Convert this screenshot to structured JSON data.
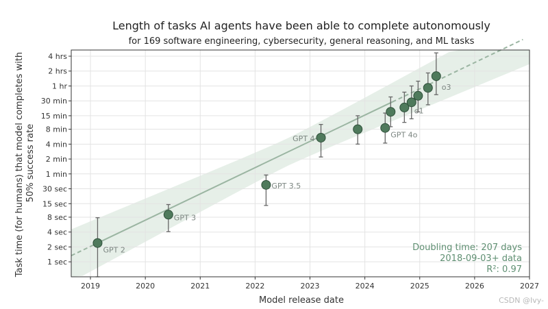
{
  "chart_data": {
    "type": "scatter",
    "title": "Length of tasks AI agents have been able to complete autonomously",
    "subtitle": "for 169 software engineering, cybersecurity, general reasoning, and ML tasks",
    "xlabel": "Model release date",
    "ylabel": "Task time (for humans) that model completes with 50% success rate",
    "x_range": [
      2018.65,
      2027.0
    ],
    "x_ticks": [
      "2019",
      "2020",
      "2021",
      "2022",
      "2023",
      "2024",
      "2025",
      "2026",
      "2027"
    ],
    "x_tick_values": [
      2019,
      2020,
      2021,
      2022,
      2023,
      2024,
      2025,
      2026,
      2027
    ],
    "y_scale": "log",
    "y_range_minutes": [
      0.0083,
      320
    ],
    "y_ticks": [
      "1 sec",
      "2 sec",
      "4 sec",
      "8 sec",
      "15 sec",
      "30 sec",
      "1 min",
      "2 min",
      "4 min",
      "8 min",
      "15 min",
      "30 min",
      "1 hr",
      "2 hrs",
      "4 hrs"
    ],
    "y_tick_values_minutes": [
      0.016667,
      0.033333,
      0.066667,
      0.133333,
      0.25,
      0.5,
      1,
      2,
      4,
      8,
      15,
      30,
      60,
      120,
      240
    ],
    "points": [
      {
        "label": "GPT 2",
        "x": 2019.13,
        "y": 0.04,
        "y_low": 0.0083,
        "y_high": 0.13
      },
      {
        "label": "GPT 3",
        "x": 2020.42,
        "y": 0.15,
        "y_low": 0.068,
        "y_high": 0.24
      },
      {
        "label": "GPT 3.5",
        "x": 2022.2,
        "y": 0.6,
        "y_low": 0.23,
        "y_high": 0.95
      },
      {
        "label": "GPT 4",
        "x": 2023.2,
        "y": 5.4,
        "y_low": 2.2,
        "y_high": 10
      },
      {
        "label": "",
        "x": 2023.87,
        "y": 8.0,
        "y_low": 4.0,
        "y_high": 15
      },
      {
        "label": "GPT 4o",
        "x": 2024.37,
        "y": 8.5,
        "y_low": 4.2,
        "y_high": 17
      },
      {
        "label": "",
        "x": 2024.47,
        "y": 18,
        "y_low": 9,
        "y_high": 36
      },
      {
        "label": "",
        "x": 2024.72,
        "y": 22,
        "y_low": 11,
        "y_high": 45
      },
      {
        "label": "o1",
        "x": 2024.85,
        "y": 28,
        "y_low": 13,
        "y_high": 60
      },
      {
        "label": "",
        "x": 2024.97,
        "y": 38,
        "y_low": 18,
        "y_high": 75
      },
      {
        "label": "",
        "x": 2025.15,
        "y": 55,
        "y_low": 25,
        "y_high": 110
      },
      {
        "label": "o3",
        "x": 2025.3,
        "y": 95,
        "y_low": 40,
        "y_high": 280
      }
    ],
    "trend": {
      "doubling_time_days": 207,
      "fit_start": 2019.13,
      "fit_end": 2024.5,
      "projection_end": 2026.88
    },
    "annotations": {
      "doubling": "Doubling time: 207 days",
      "data_range": "2018-09-03+ data",
      "r2": "R²: 0.97"
    },
    "colors": {
      "point": "#4f7a5c",
      "trend": "#9bb5a2",
      "band": "#e6efe8"
    }
  },
  "watermark": "CSDN @Ivy-"
}
